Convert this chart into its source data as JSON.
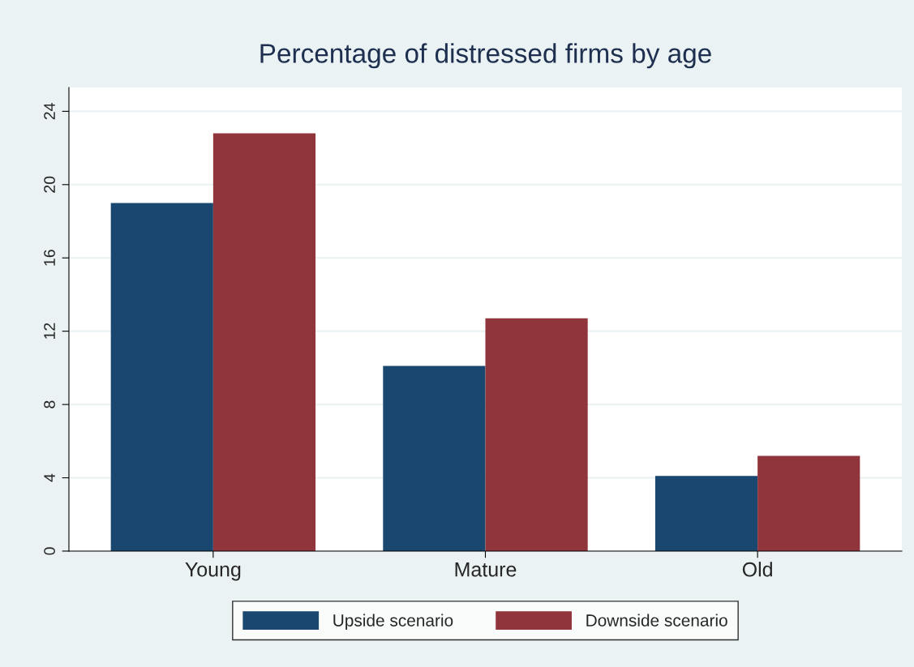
{
  "chart_data": {
    "type": "bar",
    "title": "Percentage of distressed firms by age",
    "categories": [
      "Young",
      "Mature",
      "Old"
    ],
    "series": [
      {
        "name": "Upside scenario",
        "color": "#1a476f",
        "values": [
          19.0,
          10.1,
          4.1
        ]
      },
      {
        "name": "Downside scenario",
        "color": "#90353b",
        "values": [
          22.8,
          12.7,
          5.2
        ]
      }
    ],
    "ylim": [
      0,
      25.3
    ],
    "yticks": [
      0,
      4,
      8,
      12,
      16,
      20,
      24
    ],
    "grid": "y",
    "legend": "bottom"
  }
}
